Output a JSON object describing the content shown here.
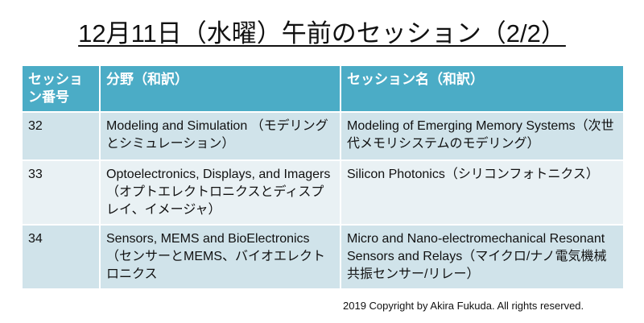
{
  "title": "12月11日（水曜）午前のセッション（2/2）",
  "table": {
    "headers": [
      "セッション番号",
      "分野（和訳）",
      "セッション名（和訳）"
    ],
    "rows": [
      {
        "number": "32",
        "field": "Modeling and Simulation （モデリングとシミュレーション）",
        "session": "Modeling of Emerging Memory Systems（次世代メモリシステムのモデリング）"
      },
      {
        "number": "33",
        "field": "Optoelectronics, Displays, and Imagers （オプトエレクトロニクスとディスプレイ、イメージャ）",
        "session": "Silicon Photonics（シリコンフォトニクス）"
      },
      {
        "number": "34",
        "field": "Sensors, MEMS and BioElectronics（センサーとMEMS、バイオエレクトロニクス",
        "session": "Micro and Nano-electromechanical Resonant Sensors and Relays（マイクロ/ナノ電気機械共振センサー/リレー）"
      }
    ]
  },
  "copyright": "2019  Copyright by Akira Fukuda. All rights reserved.",
  "colors": {
    "header": "#4bacc6",
    "row_dark": "#d0e3ea",
    "row_light": "#e9f1f4"
  }
}
